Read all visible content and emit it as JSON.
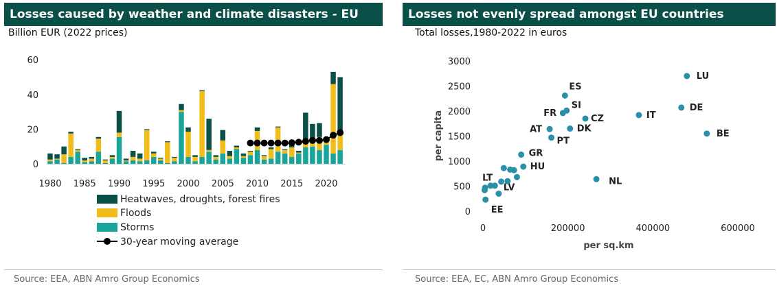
{
  "colors": {
    "heatwaves": "#0b4f49",
    "floods": "#f2bc1b",
    "storms": "#1aa59a",
    "avg": "#000000",
    "scatter": "#2b8fa8",
    "header": "#0b4f49"
  },
  "chart_data": [
    {
      "type": "bar",
      "stacked": true,
      "title": "Losses caused by weather and climate disasters - EU",
      "subtitle": "Billion EUR (2022 prices)",
      "source": "Source: EEA, ABN Amro Group Economics",
      "ylim": [
        0,
        60
      ],
      "yticks": [
        0,
        20,
        40,
        60
      ],
      "xticks": [
        1980,
        1985,
        1990,
        1995,
        2000,
        2005,
        2010,
        2015,
        2020
      ],
      "categories": [
        1980,
        1981,
        1982,
        1983,
        1984,
        1985,
        1986,
        1987,
        1988,
        1989,
        1990,
        1991,
        1992,
        1993,
        1994,
        1995,
        1996,
        1997,
        1998,
        1999,
        2000,
        2001,
        2002,
        2003,
        2004,
        2005,
        2006,
        2007,
        2008,
        2009,
        2010,
        2011,
        2012,
        2013,
        2014,
        2015,
        2016,
        2017,
        2018,
        2019,
        2020,
        2021,
        2022
      ],
      "series": [
        {
          "name": "Heatwaves, droughts, forest fires",
          "values": [
            3.5,
            2.5,
            4.5,
            1,
            0.5,
            1.5,
            1,
            1,
            0.5,
            1,
            12.5,
            1,
            3.5,
            3,
            0.5,
            1,
            0.5,
            0.5,
            0.5,
            3.5,
            2.5,
            1,
            0.5,
            18,
            1,
            6,
            3,
            1,
            1.5,
            0.5,
            2,
            0.5,
            1,
            0.5,
            0.5,
            2,
            1,
            16,
            9,
            8,
            2,
            7,
            33
          ]
        },
        {
          "name": "Floods",
          "values": [
            1,
            0.5,
            5,
            13.5,
            1,
            1,
            1.5,
            7.5,
            1.5,
            1,
            2.5,
            0.5,
            2,
            1.5,
            17.5,
            2,
            1,
            12,
            2,
            1,
            14.5,
            2.5,
            38,
            1,
            1.5,
            7.5,
            1.5,
            1,
            1,
            2,
            11,
            2,
            5.5,
            14,
            2,
            5.5,
            0.5,
            4,
            4,
            7.5,
            2,
            40,
            9
          ]
        },
        {
          "name": "Storms",
          "values": [
            1.5,
            2.5,
            0.5,
            4,
            7,
            1,
            1.5,
            7,
            0.5,
            3,
            15.5,
            1.5,
            2,
            1.5,
            2,
            4,
            2,
            0.5,
            1.5,
            30,
            4,
            1.5,
            4,
            7,
            2.5,
            6,
            3,
            8.5,
            3.5,
            5,
            8,
            2.5,
            3,
            7,
            6,
            4,
            6,
            9.5,
            10,
            8,
            11,
            6,
            8
          ]
        },
        {
          "name": "30-year moving average",
          "x": [
            2009,
            2010,
            2011,
            2012,
            2013,
            2014,
            2015,
            2016,
            2017,
            2018,
            2019,
            2020,
            2021,
            2022
          ],
          "values": [
            12,
            12,
            12,
            12,
            12,
            12,
            12.2,
            12.5,
            13,
            13.5,
            13.5,
            14,
            16.5,
            18
          ]
        }
      ]
    },
    {
      "type": "scatter",
      "title": "Losses not evenly spread amongst EU countries",
      "subtitle": "Total losses,1980-2022 in euros",
      "source": "Source: EEA, EC, ABN Amro Group Economics",
      "xlabel": "per sq.km",
      "ylabel": "per capita",
      "xlim": [
        0,
        600000
      ],
      "ylim": [
        0,
        3000
      ],
      "xticks": [
        0,
        200000,
        400000,
        600000
      ],
      "yticks": [
        0,
        500,
        1000,
        1500,
        2000,
        2500,
        3000
      ],
      "points": [
        {
          "label": "LU",
          "x": 480000,
          "y": 2700
        },
        {
          "label": "DE",
          "x": 467000,
          "y": 2070
        },
        {
          "label": "IT",
          "x": 367000,
          "y": 1920
        },
        {
          "label": "BE",
          "x": 527000,
          "y": 1550
        },
        {
          "label": "ES",
          "x": 193000,
          "y": 2310
        },
        {
          "label": "SI",
          "x": 197000,
          "y": 2010
        },
        {
          "label": "FR",
          "x": 188000,
          "y": 1960
        },
        {
          "label": "CZ",
          "x": 241000,
          "y": 1850
        },
        {
          "label": "AT",
          "x": 157000,
          "y": 1640
        },
        {
          "label": "DK",
          "x": 205000,
          "y": 1650
        },
        {
          "label": "PT",
          "x": 161000,
          "y": 1470
        },
        {
          "label": "GR",
          "x": 90000,
          "y": 1130
        },
        {
          "label": "HU",
          "x": 95000,
          "y": 890
        },
        {
          "label": "NL",
          "x": 267000,
          "y": 640
        },
        {
          "label": "LT",
          "x": 5000,
          "y": 470
        },
        {
          "label": "LV",
          "x": 37000,
          "y": 350
        },
        {
          "label": "EE",
          "x": 6000,
          "y": 230
        },
        {
          "label": "",
          "x": 4000,
          "y": 420
        },
        {
          "label": "",
          "x": 18000,
          "y": 510
        },
        {
          "label": "",
          "x": 28000,
          "y": 510
        },
        {
          "label": "",
          "x": 43000,
          "y": 590
        },
        {
          "label": "",
          "x": 49000,
          "y": 860
        },
        {
          "label": "",
          "x": 64000,
          "y": 830
        },
        {
          "label": "",
          "x": 73000,
          "y": 820
        },
        {
          "label": "",
          "x": 80000,
          "y": 680
        },
        {
          "label": "",
          "x": 58000,
          "y": 600
        }
      ]
    }
  ]
}
